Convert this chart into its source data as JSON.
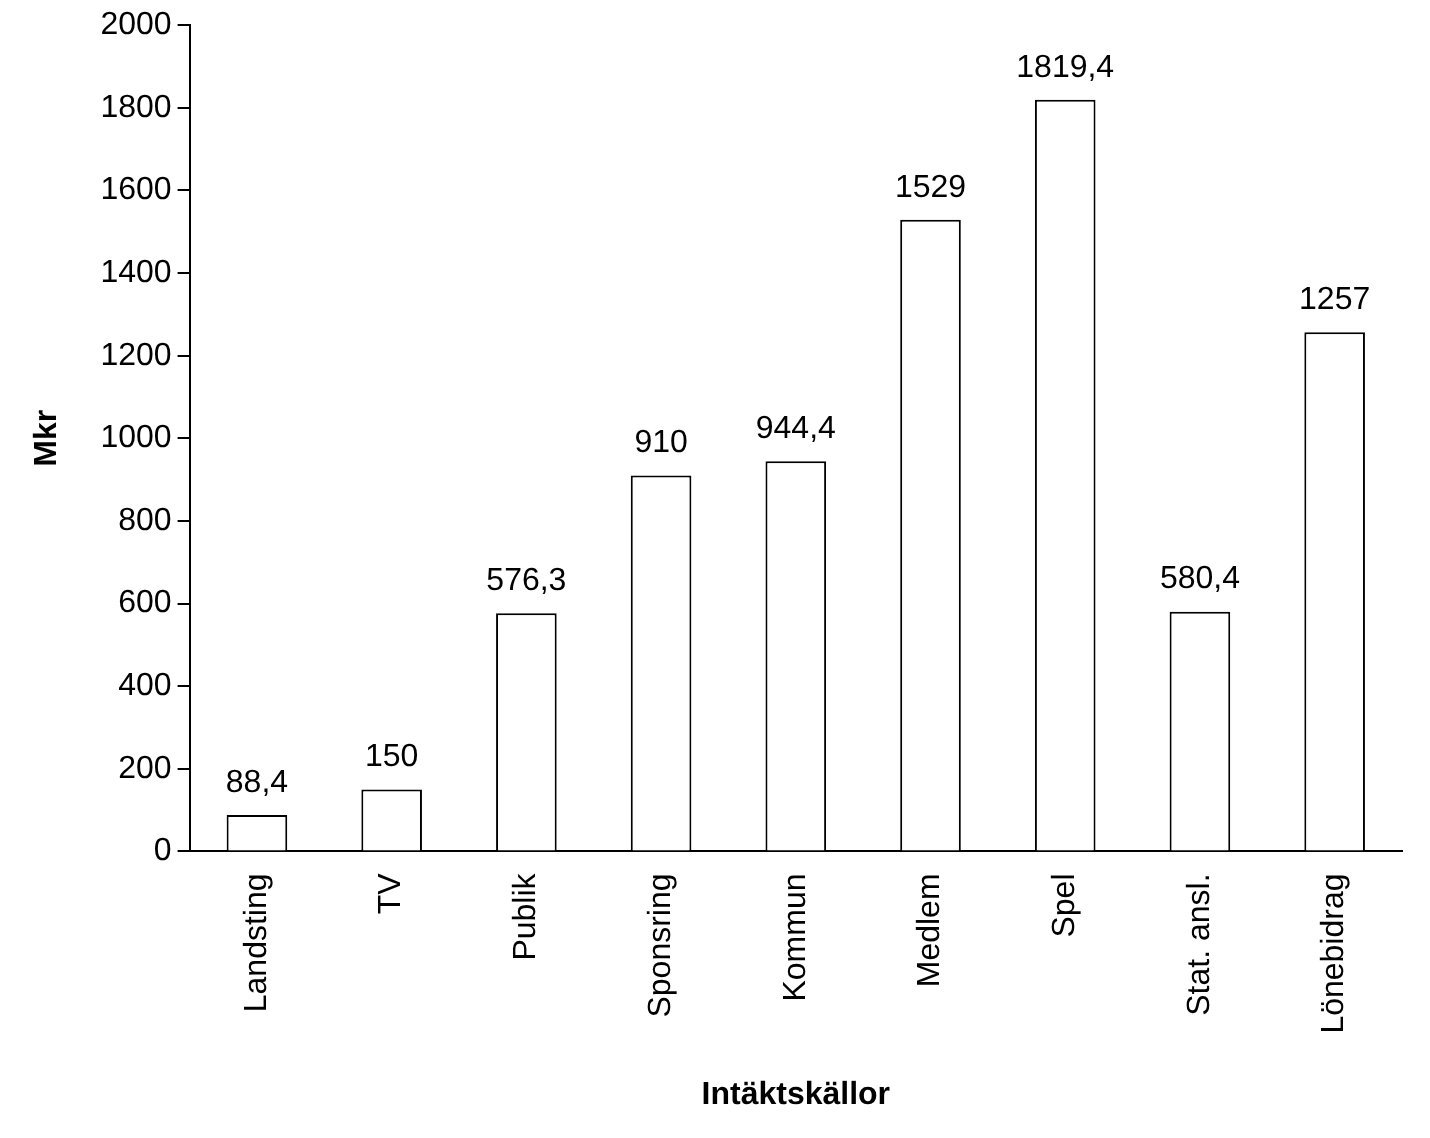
{
  "chart_data": {
    "type": "bar",
    "xlabel": "Intäktskällor",
    "ylabel": "Mkr",
    "categories": [
      "Landsting",
      "TV",
      "Publik",
      "Sponsring",
      "Kommun",
      "Medlem",
      "Spel",
      "Stat. ansl.",
      "Lönebidrag"
    ],
    "values": [
      88.4,
      150,
      576.3,
      910,
      944.4,
      1529,
      1819.4,
      580.4,
      1257
    ],
    "value_labels": [
      "88,4",
      "150",
      "576,3",
      "910",
      "944,4",
      "1529",
      "1819,4",
      "580,4",
      "1257"
    ],
    "color": "#ffffff",
    "ylim": [
      0,
      2000
    ],
    "yticks": [
      0,
      200,
      400,
      600,
      800,
      1000,
      1200,
      1400,
      1600,
      1800,
      2000
    ],
    "grid": false,
    "legend": false
  }
}
